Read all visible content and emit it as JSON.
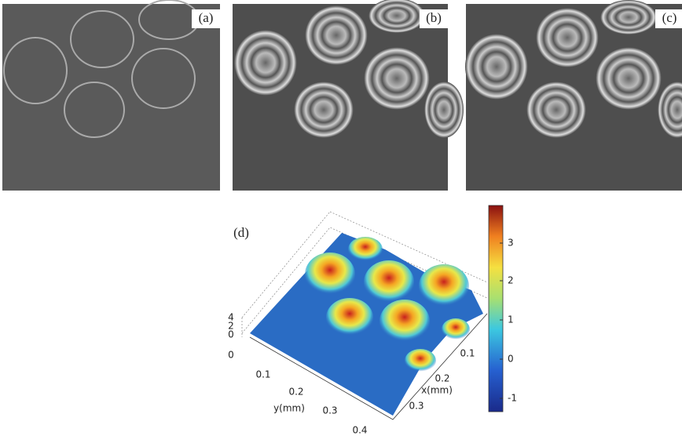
{
  "panels": [
    {
      "label": "(a)"
    },
    {
      "label": "(b)"
    },
    {
      "label": "(c)"
    },
    {
      "label": "(d)"
    }
  ],
  "plot": {
    "z_ticks": [
      4,
      2,
      0
    ],
    "y_axis": {
      "label": "y(mm)",
      "ticks": [
        0,
        0.1,
        0.2,
        0.3,
        0.4
      ]
    },
    "x_axis": {
      "label": "x(mm)",
      "ticks": [
        0.1,
        0.2,
        0.3
      ]
    },
    "colorbar": {
      "ticks": [
        3,
        2,
        1,
        0,
        -1
      ]
    }
  }
}
